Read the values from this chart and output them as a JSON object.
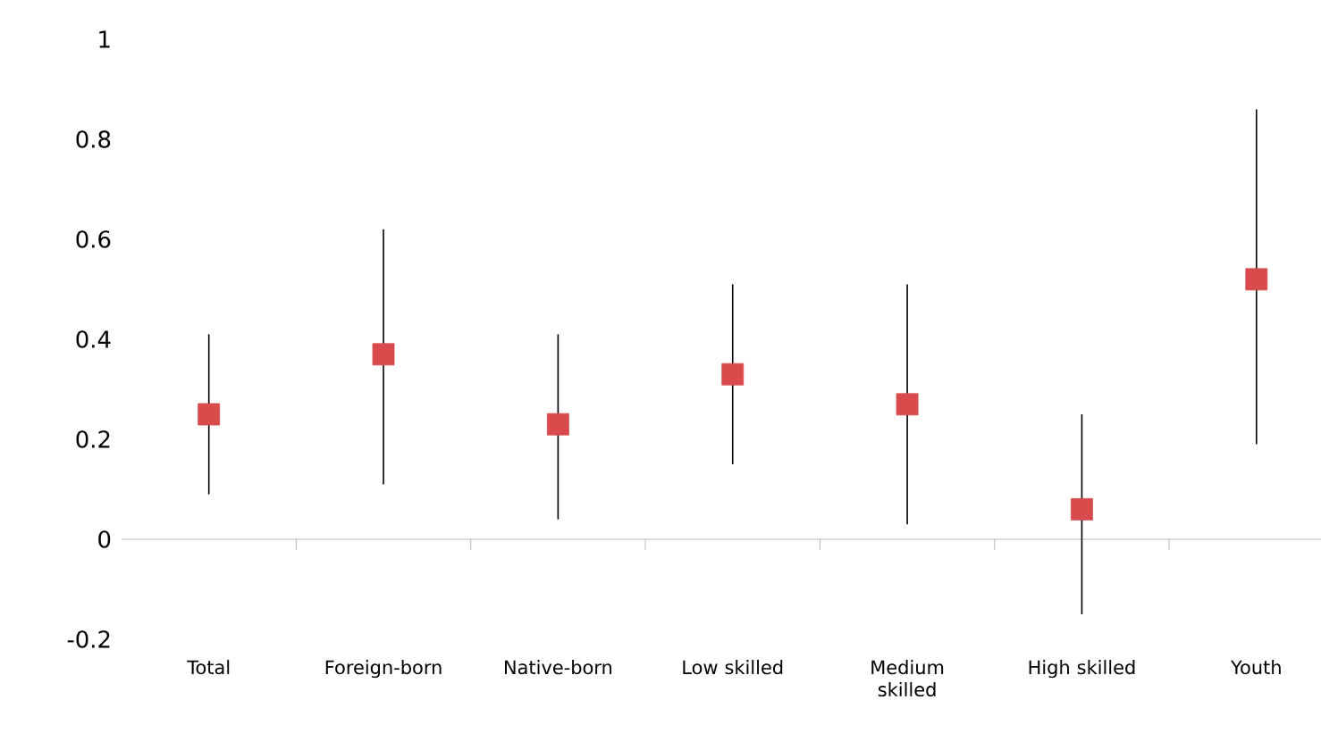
{
  "chart_data": {
    "type": "scatter",
    "categories": [
      "Total",
      "Foreign-born",
      "Native-born",
      "Low skilled",
      "Medium skilled",
      "High skilled",
      "Youth"
    ],
    "values": [
      0.25,
      0.37,
      0.23,
      0.33,
      0.27,
      0.06,
      0.52
    ],
    "errors": [
      [
        0.09,
        0.41
      ],
      [
        0.11,
        0.62
      ],
      [
        0.04,
        0.41
      ],
      [
        0.15,
        0.51
      ],
      [
        0.03,
        0.51
      ],
      [
        -0.15,
        0.25
      ],
      [
        0.19,
        0.86
      ]
    ],
    "color": "#d94a4c",
    "marker": "square",
    "ylim": [
      -0.2,
      1
    ],
    "yticks": [
      -0.2,
      0,
      0.2,
      0.4,
      0.6,
      0.8,
      1
    ]
  }
}
